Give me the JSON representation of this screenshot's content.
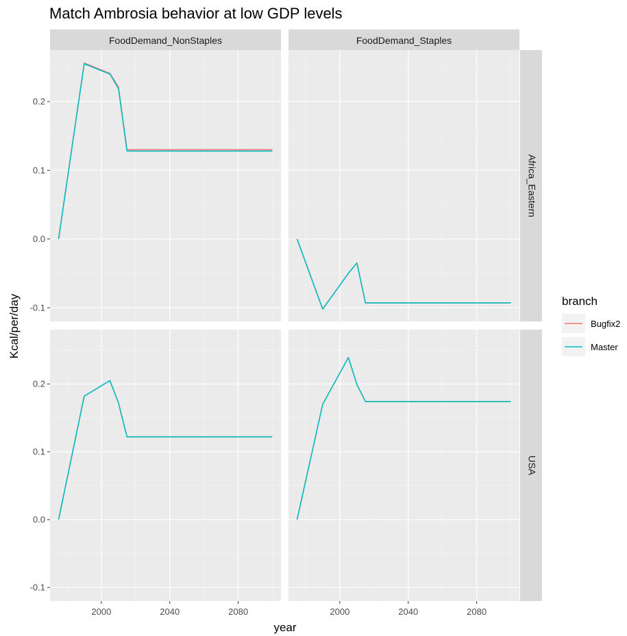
{
  "title": "Match Ambrosia behavior at low GDP levels",
  "colors": {
    "panel_bg": "#EBEBEB",
    "strip_bg": "#D9D9D9",
    "grid_major": "#FFFFFF",
    "grid_minor": "#F5F5F5",
    "tick_text": "#4D4D4D"
  },
  "legend": {
    "title": "branch",
    "entries": [
      {
        "label": "Bugfix2",
        "color": "#F8766D"
      },
      {
        "label": "Master",
        "color": "#00BFC4"
      }
    ]
  },
  "chart_data": {
    "type": "line",
    "title": "Match Ambrosia behavior at low GDP levels",
    "xlabel": "year",
    "ylabel": "Kcal/per/day",
    "col_facets": [
      "FoodDemand_NonStaples",
      "FoodDemand_Staples"
    ],
    "row_facets": [
      "Africa_Eastern",
      "USA"
    ],
    "x_ticks": [
      2000,
      2040,
      2080
    ],
    "xlim": [
      1970,
      2105
    ],
    "x": [
      1975,
      1990,
      2005,
      2010,
      2015,
      2020,
      2025,
      2030,
      2035,
      2040,
      2045,
      2050,
      2055,
      2060,
      2065,
      2070,
      2075,
      2080,
      2085,
      2090,
      2095,
      2100
    ],
    "rows": [
      {
        "name": "Africa_Eastern",
        "ylim": [
          -0.12,
          0.275
        ],
        "y_ticks": [
          -0.1,
          0.0,
          0.1,
          0.2
        ],
        "y_tick_labels": [
          "-0.1",
          "0.0",
          "0.1",
          "0.2"
        ],
        "panels": [
          {
            "facet": "FoodDemand_NonStaples",
            "series": [
              {
                "name": "Bugfix2",
                "values": [
                  0.0,
                  0.256,
                  0.241,
                  0.221,
                  0.13,
                  0.13,
                  0.13,
                  0.13,
                  0.13,
                  0.13,
                  0.13,
                  0.13,
                  0.13,
                  0.13,
                  0.13,
                  0.13,
                  0.13,
                  0.13,
                  0.13,
                  0.13,
                  0.13,
                  0.13
                ]
              },
              {
                "name": "Master",
                "values": [
                  0.0,
                  0.255,
                  0.24,
                  0.219,
                  0.128,
                  0.128,
                  0.128,
                  0.128,
                  0.128,
                  0.128,
                  0.128,
                  0.128,
                  0.128,
                  0.128,
                  0.128,
                  0.128,
                  0.128,
                  0.128,
                  0.128,
                  0.128,
                  0.128,
                  0.128
                ]
              }
            ]
          },
          {
            "facet": "FoodDemand_Staples",
            "series": [
              {
                "name": "Bugfix2",
                "values": [
                  0.0,
                  -0.102,
                  -0.05,
                  -0.035,
                  -0.093,
                  -0.093,
                  -0.093,
                  -0.093,
                  -0.093,
                  -0.093,
                  -0.093,
                  -0.093,
                  -0.093,
                  -0.093,
                  -0.093,
                  -0.093,
                  -0.093,
                  -0.093,
                  -0.093,
                  -0.093,
                  -0.093,
                  -0.093
                ]
              },
              {
                "name": "Master",
                "values": [
                  0.0,
                  -0.102,
                  -0.05,
                  -0.035,
                  -0.093,
                  -0.093,
                  -0.093,
                  -0.093,
                  -0.093,
                  -0.093,
                  -0.093,
                  -0.093,
                  -0.093,
                  -0.093,
                  -0.093,
                  -0.093,
                  -0.093,
                  -0.093,
                  -0.093,
                  -0.093,
                  -0.093,
                  -0.093
                ]
              }
            ]
          }
        ]
      },
      {
        "name": "USA",
        "ylim": [
          -0.12,
          0.28
        ],
        "y_ticks": [
          -0.1,
          0.0,
          0.1,
          0.2
        ],
        "y_tick_labels": [
          "-0.1",
          "0.0",
          "0.1",
          "0.2"
        ],
        "panels": [
          {
            "facet": "FoodDemand_NonStaples",
            "series": [
              {
                "name": "Bugfix2",
                "values": [
                  0.0,
                  0.182,
                  0.205,
                  0.172,
                  0.122,
                  0.122,
                  0.122,
                  0.122,
                  0.122,
                  0.122,
                  0.122,
                  0.122,
                  0.122,
                  0.122,
                  0.122,
                  0.122,
                  0.122,
                  0.122,
                  0.122,
                  0.122,
                  0.122,
                  0.122
                ]
              },
              {
                "name": "Master",
                "values": [
                  0.0,
                  0.182,
                  0.205,
                  0.172,
                  0.122,
                  0.122,
                  0.122,
                  0.122,
                  0.122,
                  0.122,
                  0.122,
                  0.122,
                  0.122,
                  0.122,
                  0.122,
                  0.122,
                  0.122,
                  0.122,
                  0.122,
                  0.122,
                  0.122,
                  0.122
                ]
              }
            ]
          },
          {
            "facet": "FoodDemand_Staples",
            "series": [
              {
                "name": "Bugfix2",
                "values": [
                  0.0,
                  0.17,
                  0.239,
                  0.199,
                  0.174,
                  0.174,
                  0.174,
                  0.174,
                  0.174,
                  0.174,
                  0.174,
                  0.174,
                  0.174,
                  0.174,
                  0.174,
                  0.174,
                  0.174,
                  0.174,
                  0.174,
                  0.174,
                  0.174,
                  0.174
                ]
              },
              {
                "name": "Master",
                "values": [
                  0.0,
                  0.17,
                  0.239,
                  0.199,
                  0.174,
                  0.174,
                  0.174,
                  0.174,
                  0.174,
                  0.174,
                  0.174,
                  0.174,
                  0.174,
                  0.174,
                  0.174,
                  0.174,
                  0.174,
                  0.174,
                  0.174,
                  0.174,
                  0.174,
                  0.174
                ]
              }
            ]
          }
        ]
      }
    ]
  }
}
